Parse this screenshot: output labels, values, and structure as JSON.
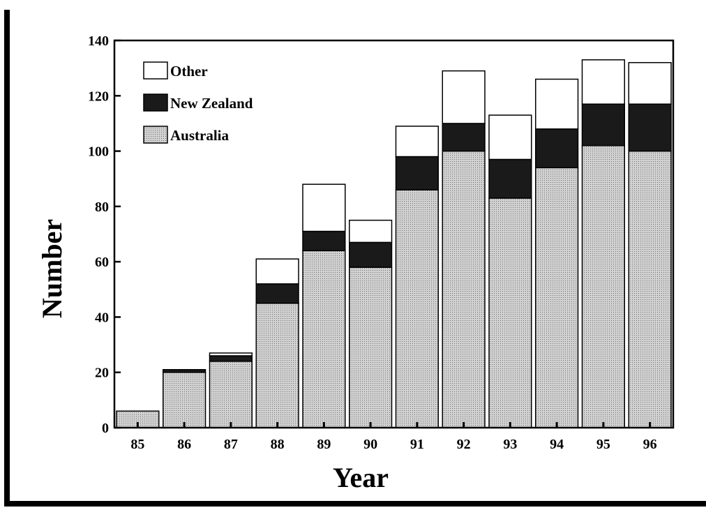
{
  "chart_data": {
    "type": "bar",
    "stacked": true,
    "title": "",
    "xlabel": "Year",
    "ylabel": "Number",
    "categories": [
      "85",
      "86",
      "87",
      "88",
      "89",
      "90",
      "91",
      "92",
      "93",
      "94",
      "95",
      "96"
    ],
    "series": [
      {
        "name": "Australia",
        "values": [
          6,
          20,
          24,
          45,
          64,
          58,
          86,
          100,
          83,
          94,
          102,
          100
        ]
      },
      {
        "name": "New Zealand",
        "values": [
          0,
          1,
          2,
          7,
          7,
          9,
          12,
          10,
          14,
          14,
          15,
          17
        ]
      },
      {
        "name": "Other",
        "values": [
          0,
          0,
          1,
          9,
          17,
          8,
          11,
          19,
          16,
          18,
          16,
          15
        ]
      }
    ],
    "ylim": [
      0,
      140
    ],
    "yticks": [
      "0",
      "20",
      "40",
      "60",
      "80",
      "100",
      "120",
      "140"
    ],
    "legend": {
      "position": "top-left",
      "order": [
        "Other",
        "New Zealand",
        "Australia"
      ]
    },
    "grid": false,
    "colors": {
      "Australia": "#b8b8b8",
      "New Zealand": "#1a1a1a",
      "Other": "#ffffff"
    }
  }
}
